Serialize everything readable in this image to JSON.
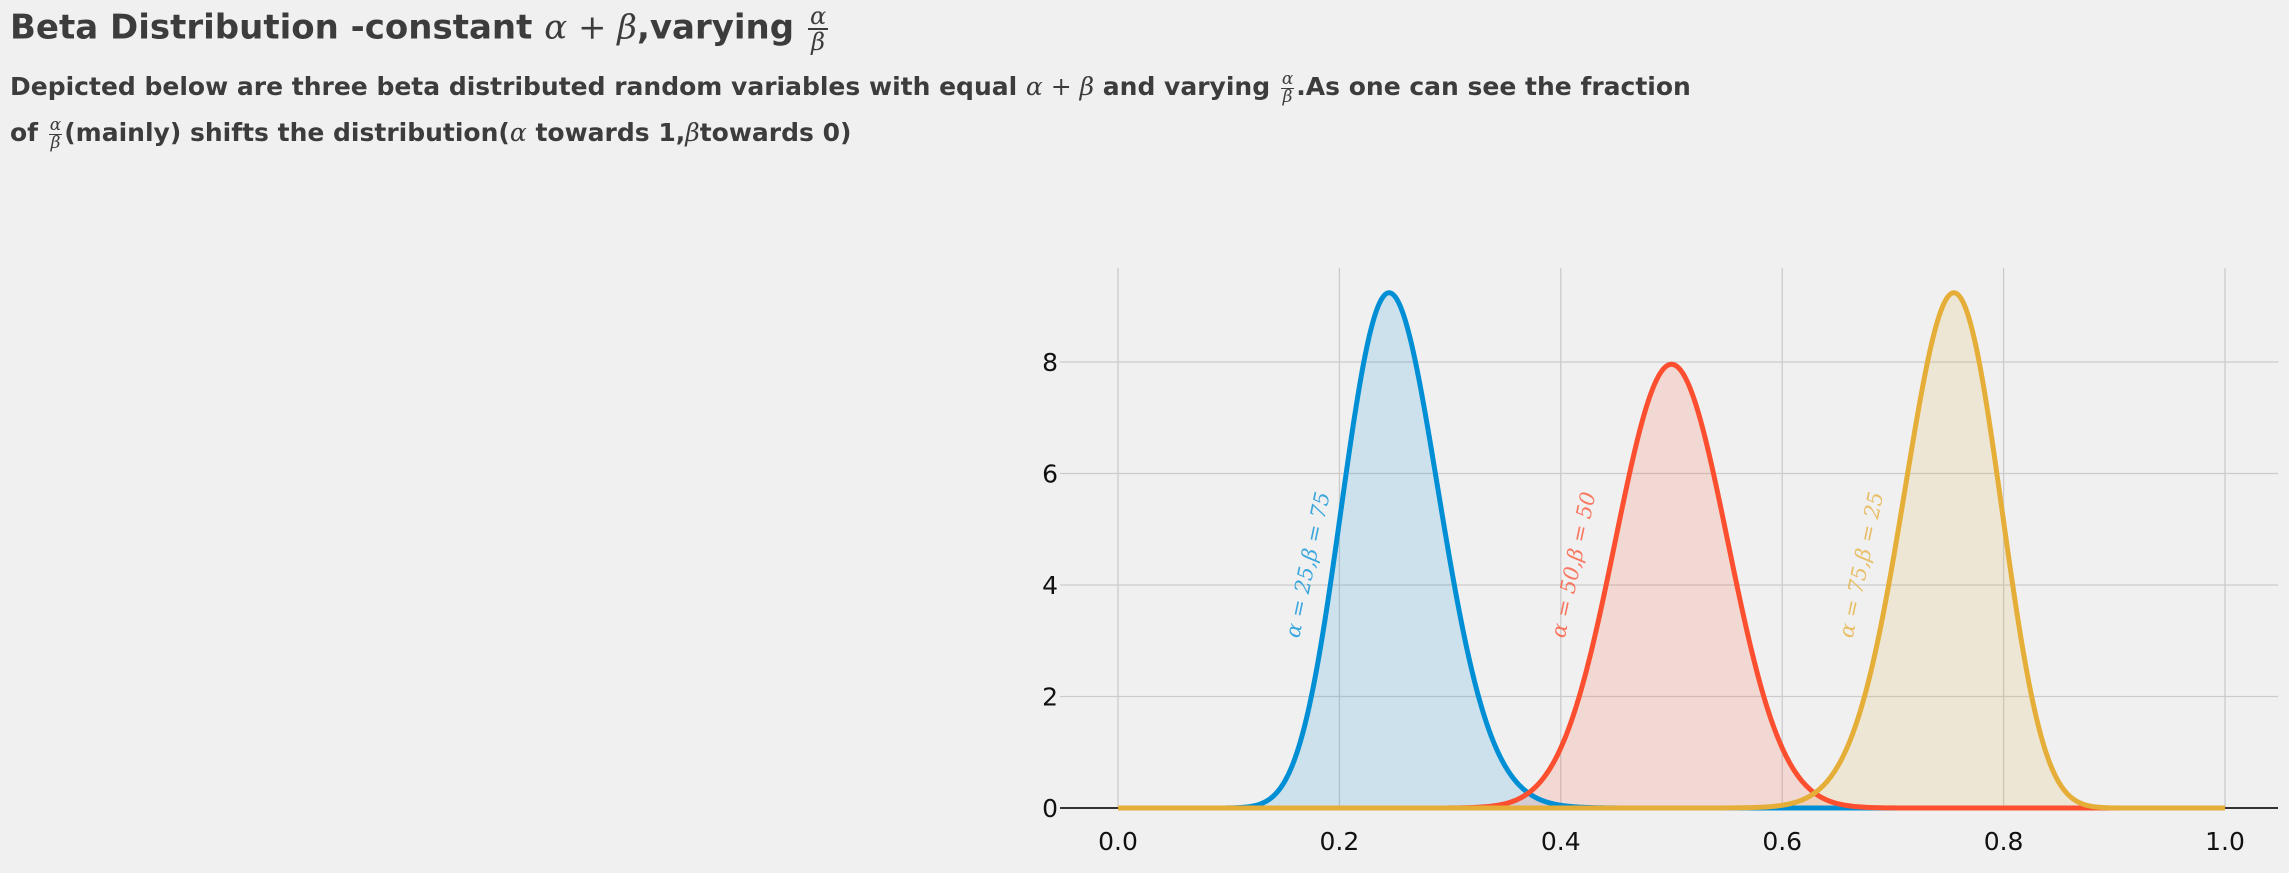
{
  "header": {
    "title_pre": "Beta Distribution -constant ",
    "title_math": "α + β",
    "title_post": ",varying ",
    "frac_num": "α",
    "frac_den": "β",
    "sub1_pre": "Depicted below are three beta distributed random variables with equal ",
    "sub1_math": "α + β",
    "sub1_mid": " and varying ",
    "sub1_post": ".As one can see the fraction",
    "sub2_pre": "of ",
    "sub2_mid": "(mainly) shifts the distribution(",
    "sub2_alpha": "α",
    "sub2_mid2": " towards 1,",
    "sub2_beta": "β",
    "sub2_post": "towards 0)"
  },
  "colors": {
    "background": "#f0f0f0",
    "grid": "#cbcbcb",
    "text": "#3c3c3c",
    "series": [
      "#008fd5",
      "#fc4f30",
      "#e5ae38"
    ]
  },
  "chart_data": {
    "type": "line",
    "xlim": [
      0,
      1
    ],
    "ylim": [
      0,
      9.6
    ],
    "xticks": [
      "0.0",
      "0.2",
      "0.4",
      "0.6",
      "0.8",
      "1.0"
    ],
    "xtick_values": [
      0,
      0.2,
      0.4,
      0.6,
      0.8,
      1.0
    ],
    "yticks": [
      "0",
      "2",
      "4",
      "6",
      "8"
    ],
    "ytick_values": [
      0,
      2,
      4,
      6,
      8
    ],
    "grid": true,
    "filled": true,
    "series": [
      {
        "name": "α = 25,β = 75",
        "alpha": 25,
        "beta": 75,
        "label_x": 0.16,
        "label_y": 3.0
      },
      {
        "name": "α = 50,β = 50",
        "alpha": 50,
        "beta": 50,
        "label_x": 0.4,
        "label_y": 3.0
      },
      {
        "name": "α = 75,β = 25",
        "alpha": 75,
        "beta": 25,
        "label_x": 0.66,
        "label_y": 3.0
      }
    ]
  }
}
